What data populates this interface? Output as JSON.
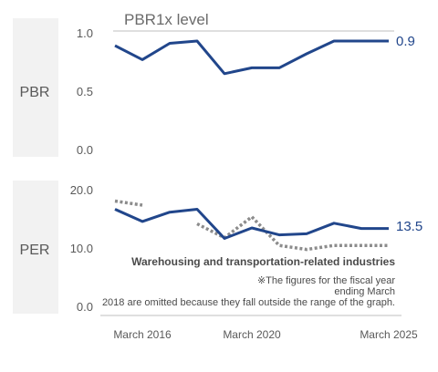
{
  "colors": {
    "main_line": "#21468b",
    "reference_line": "#8c8c8c",
    "panel_bg": "#f2f2f2",
    "rule": "#bfbfbf"
  },
  "chart_data": [
    {
      "type": "line",
      "panel_label": "PBR",
      "reference_label": "PBR1x level",
      "ylim": [
        0,
        1.0
      ],
      "y_ticks": [
        "1.0",
        "0.5",
        "0.0"
      ],
      "x_tick_labels": [
        "March 2016",
        "March 2020",
        "March 2025"
      ],
      "x_tick_years": [
        2016,
        2020,
        2025
      ],
      "x_years": [
        2015,
        2016,
        2017,
        2018,
        2019,
        2020,
        2021,
        2022,
        2023,
        2024,
        2025
      ],
      "series": [
        {
          "values": [
            0.89,
            0.77,
            0.91,
            0.93,
            0.65,
            0.7,
            0.7,
            0.82,
            0.93,
            0.93,
            0.93
          ]
        }
      ],
      "end_label": "0.9"
    },
    {
      "type": "line",
      "panel_label": "PER",
      "ylim": [
        0,
        20
      ],
      "y_ticks": [
        "20.0",
        "10.0",
        "0.0"
      ],
      "x_years": [
        2015,
        2016,
        2017,
        2018,
        2019,
        2020,
        2021,
        2022,
        2023,
        2024,
        2025
      ],
      "series": [
        {
          "style": "solid",
          "values": [
            16.8,
            14.7,
            16.3,
            16.8,
            11.8,
            13.6,
            12.4,
            12.6,
            14.4,
            13.5,
            13.5
          ]
        },
        {
          "name": "Warehousing and transportation-related industries",
          "style": "dotted",
          "values": [
            18.2,
            17.5,
            null,
            14.3,
            11.9,
            15.5,
            10.6,
            9.9,
            10.6,
            10.6,
            10.6
          ]
        }
      ],
      "end_label": "13.5",
      "note": "※The figures for the fiscal year ending March 2018 are omitted because they fall outside the range of the graph."
    }
  ]
}
